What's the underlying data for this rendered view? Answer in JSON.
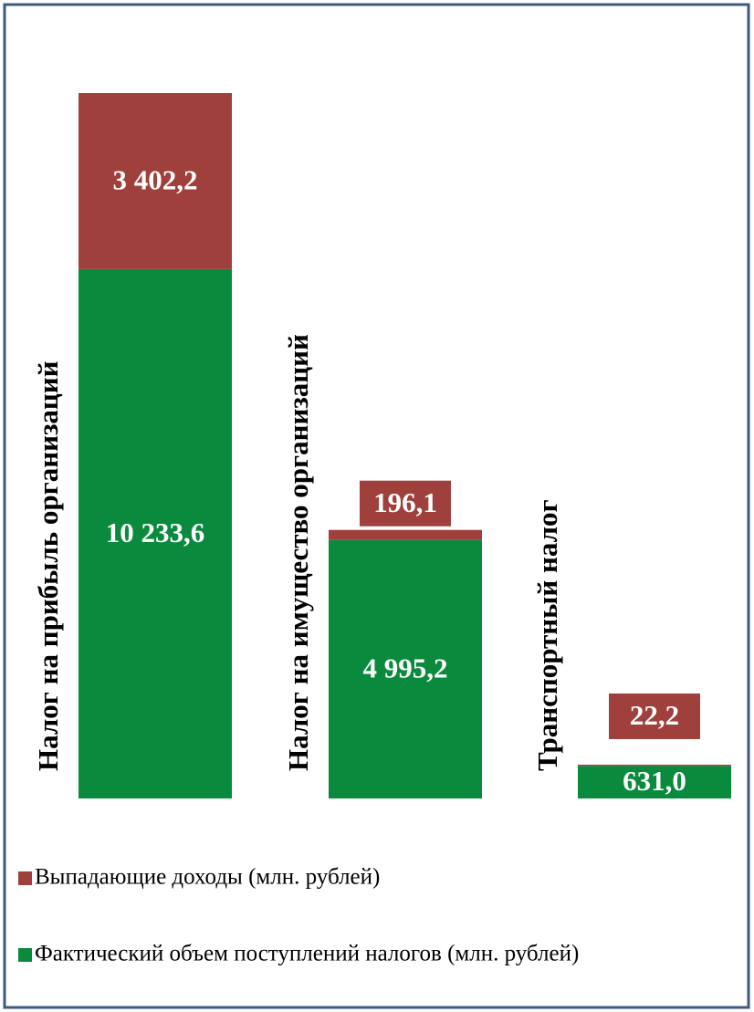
{
  "chart_data": {
    "type": "stacked_bar",
    "categories": [
      "Налог на прибыль организаций",
      "Налог на имущество организаций",
      "Транспортный налог"
    ],
    "series": [
      {
        "name": "Выпадающие доходы (млн. рублей)",
        "color": "#a0403c",
        "values": [
          3402.2,
          196.1,
          22.2
        ],
        "value_labels": [
          "3 402,2",
          "196,1",
          "22,2"
        ]
      },
      {
        "name": "Фактический объем поступлений налогов (млн. рублей)",
        "color": "#0a8a3c",
        "values": [
          10233.6,
          4995.2,
          631.0
        ],
        "value_labels": [
          "10 233,6",
          "4 995,2",
          "631,0"
        ]
      }
    ],
    "legend": "bottom"
  }
}
